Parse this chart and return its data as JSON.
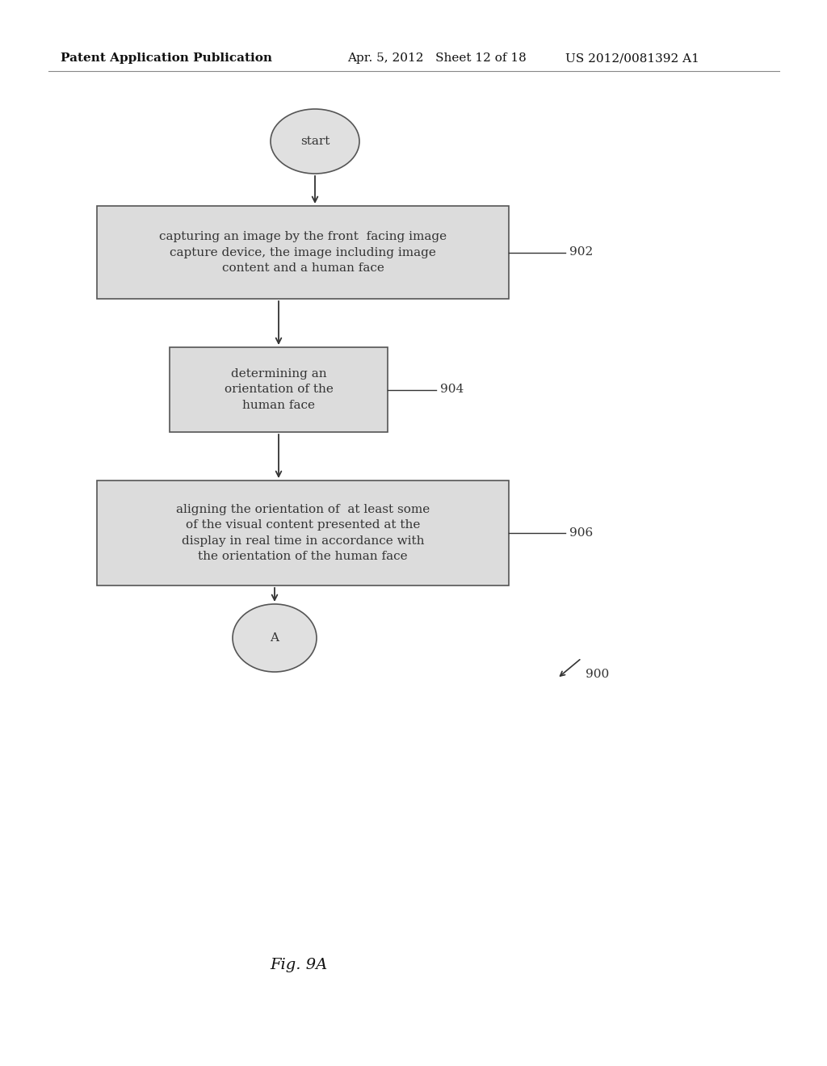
{
  "bg_color": "#ffffff",
  "header_left": "Patent Application Publication",
  "header_mid": "Apr. 5, 2012   Sheet 12 of 18",
  "header_right": "US 2012/0081392 A1",
  "start_label": "start",
  "box1_text": "capturing an image by the front  facing image\ncapture device, the image including image\ncontent and a human face",
  "box1_label": "902",
  "box2_text": "determining an\norientation of the\nhuman face",
  "box2_label": "904",
  "box3_text": "aligning the orientation of  at least some\nof the visual content presented at the\ndisplay in real time in accordance with\nthe orientation of the human face",
  "box3_label": "906",
  "end_label": "A",
  "ref900": "900",
  "fig_label": "Fig. 9A",
  "box_fill": "#dcdcdc",
  "box_edge": "#555555",
  "text_color": "#333333",
  "arrow_color": "#333333",
  "header_color": "#111111",
  "font_size_box": 11,
  "font_size_label": 11,
  "font_size_circle": 11,
  "font_size_header": 11,
  "font_size_fig": 14
}
